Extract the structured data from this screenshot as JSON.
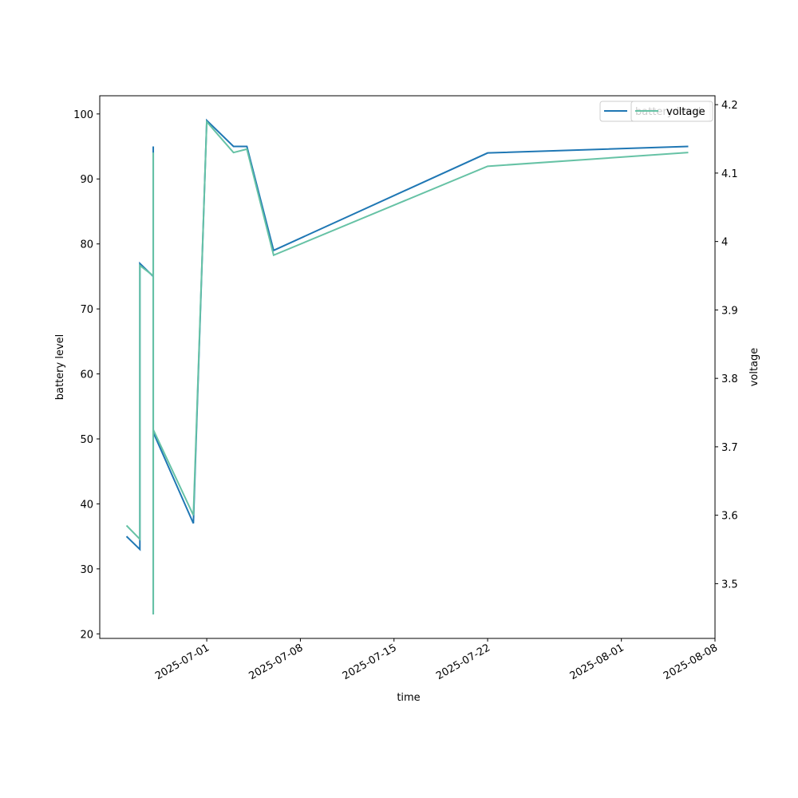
{
  "chart_data": {
    "type": "line",
    "xlabel": "time",
    "ylabel": "battery level",
    "y2label": "voltage",
    "x": [
      "2025-06-25",
      "2025-06-26",
      "2025-06-26",
      "2025-06-27",
      "2025-06-27",
      "2025-06-27",
      "2025-06-27",
      "2025-06-30",
      "2025-07-01",
      "2025-07-03",
      "2025-07-04",
      "2025-07-06",
      "2025-07-22",
      "2025-08-06"
    ],
    "series": [
      {
        "name": "battery level",
        "color": "#1f77b4",
        "values": [
          35,
          33,
          77,
          75,
          23,
          95,
          51,
          37,
          99,
          95,
          95,
          79,
          94,
          95
        ]
      },
      {
        "name": "voltage",
        "color": "#66c2a5",
        "axis": "y2",
        "values": [
          3.585,
          3.565,
          3.965,
          3.95,
          3.455,
          4.13,
          3.725,
          3.6,
          4.175,
          4.13,
          4.135,
          3.98,
          4.11,
          4.13
        ]
      }
    ],
    "xlim": [
      "2025-06-23",
      "2025-08-08"
    ],
    "xticks": [
      "2025-07-01",
      "2025-07-08",
      "2025-07-15",
      "2025-07-22",
      "2025-08-01",
      "2025-08-08"
    ],
    "ylim": [
      19.3,
      102.8
    ],
    "yticks": [
      20,
      30,
      40,
      50,
      60,
      70,
      80,
      90,
      100
    ],
    "y2lim": [
      3.42,
      4.213
    ],
    "y2ticks": [
      3.5,
      3.6,
      3.7,
      3.8,
      3.9,
      4.0,
      4.1,
      4.2
    ],
    "legend": "upper right"
  }
}
